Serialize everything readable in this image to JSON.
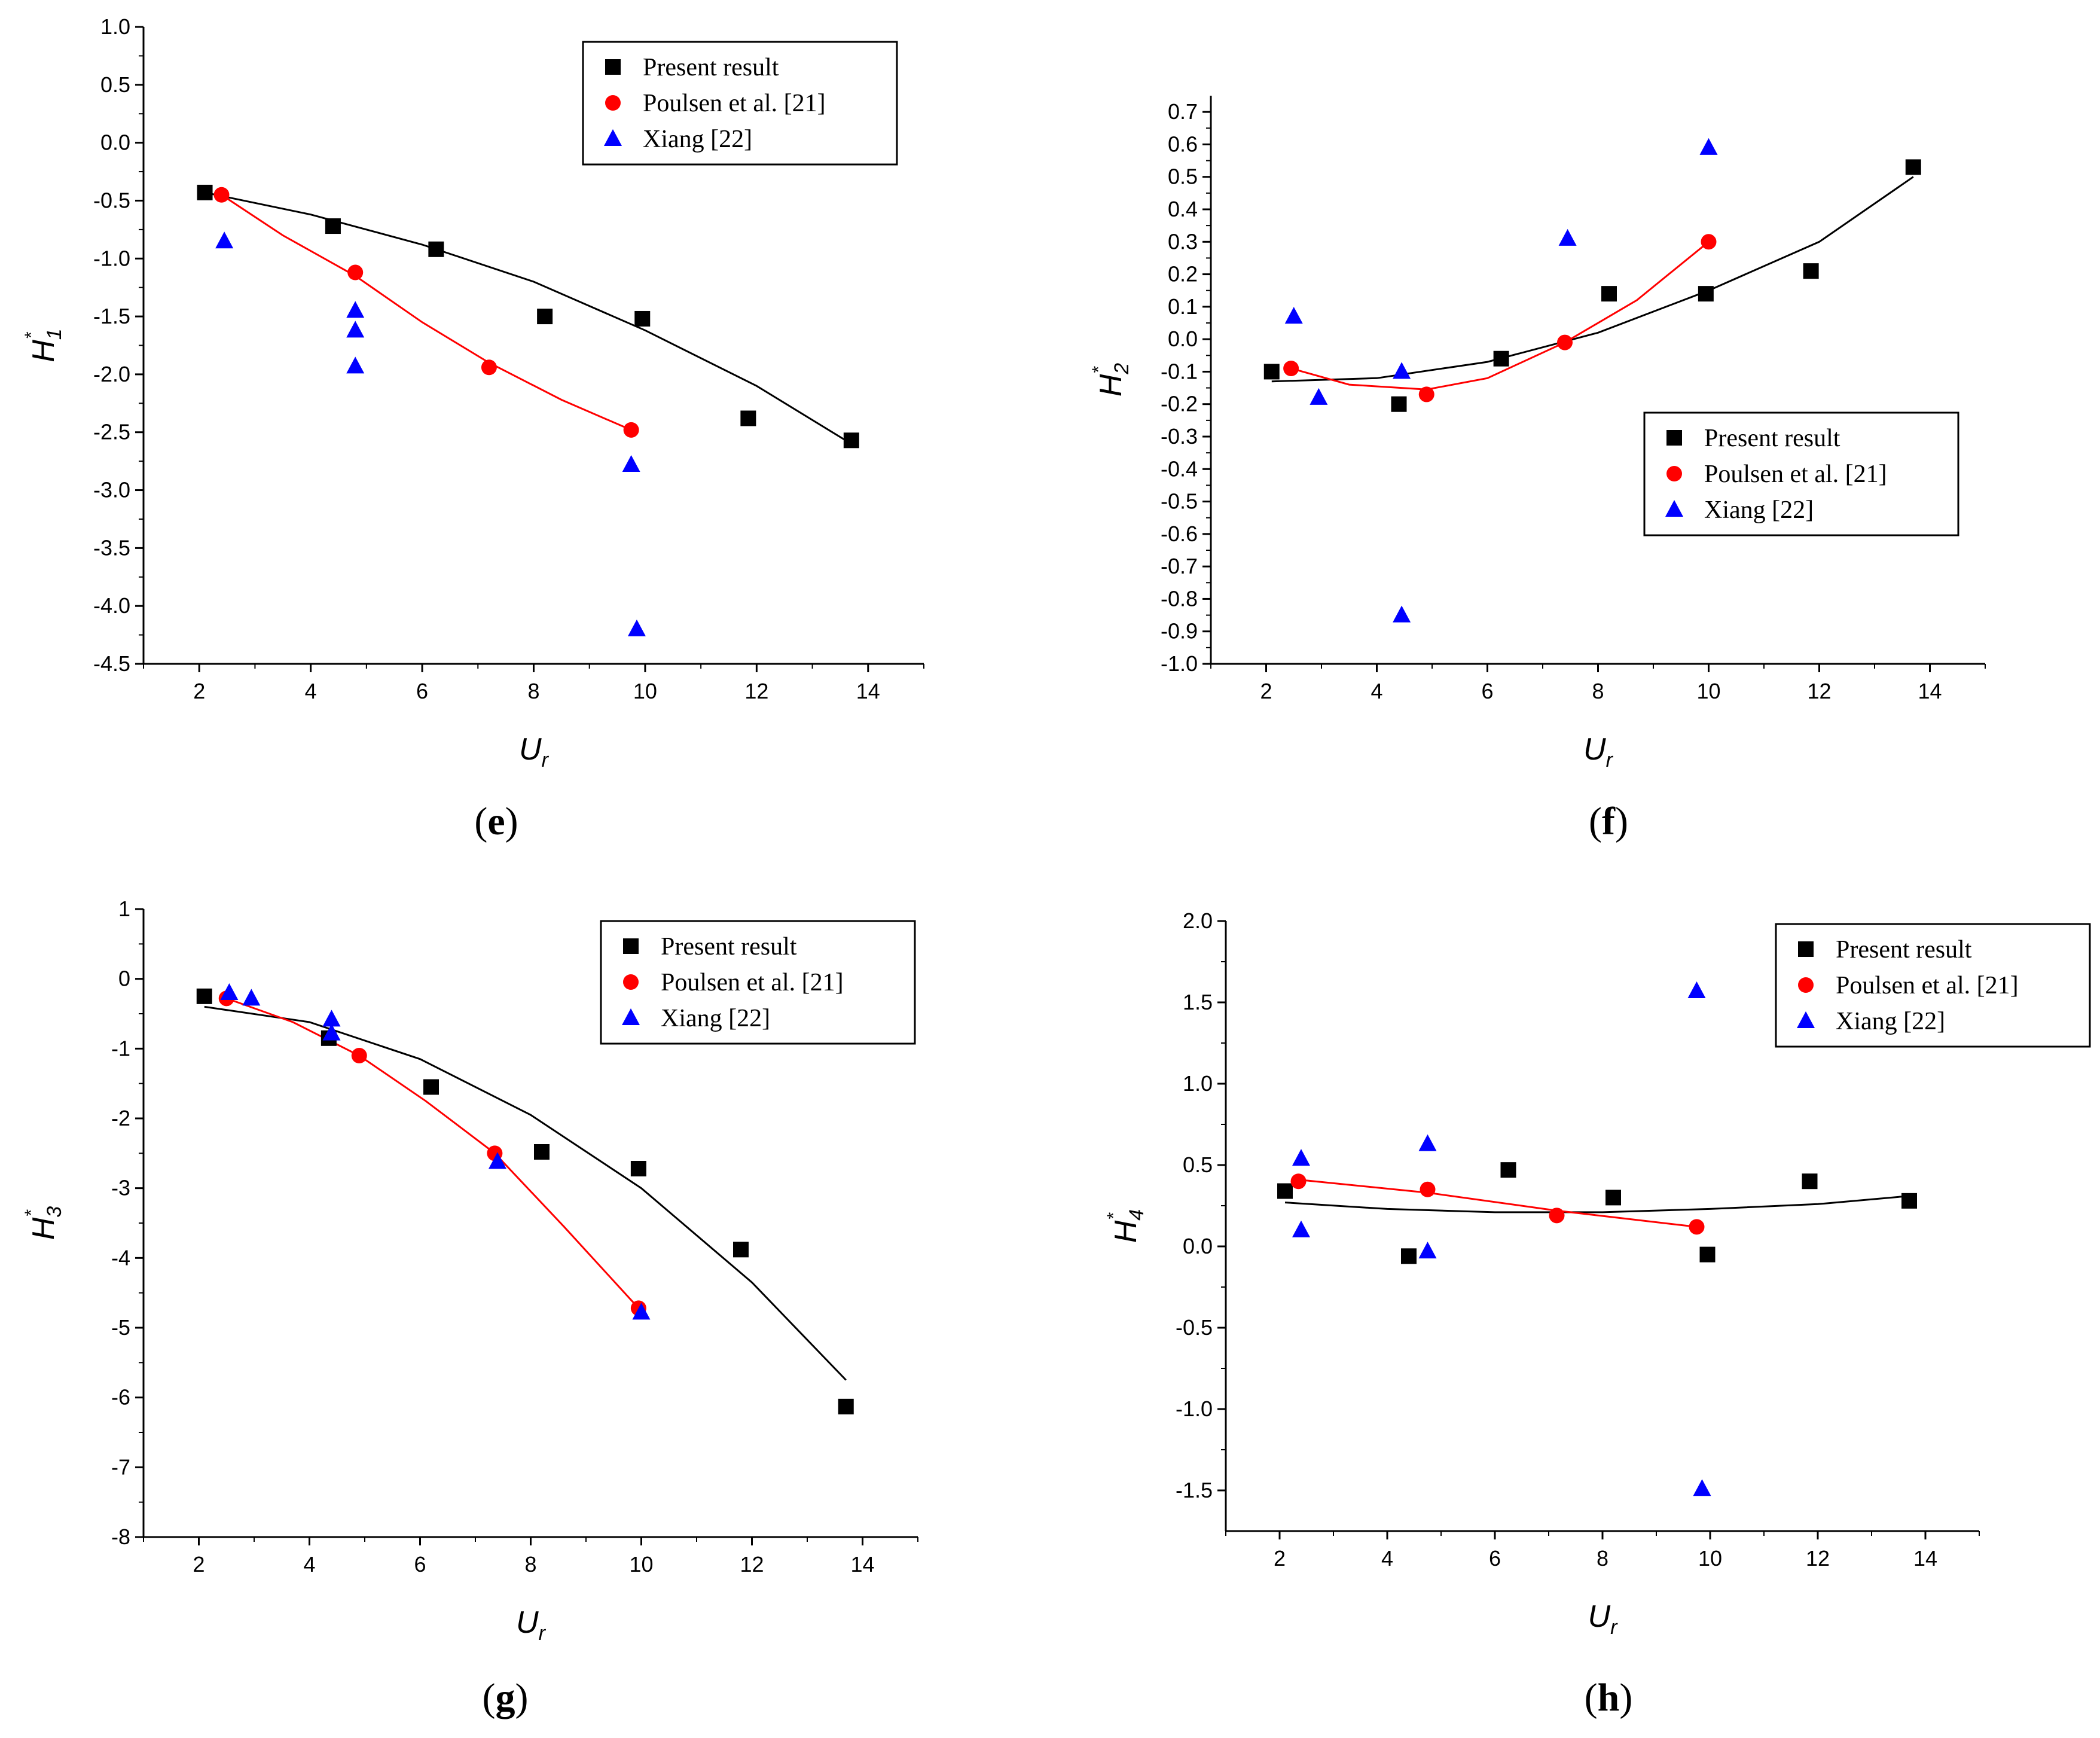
{
  "colors": {
    "present": "#000000",
    "poulsen": "#ff0000",
    "xiang": "#0000ff"
  },
  "legend": [
    "Present result",
    "Poulsen et al. [21]",
    "Xiang [22]"
  ],
  "chart_data": [
    {
      "id": "e",
      "panel_label": "e",
      "type": "scatter",
      "ylabel": "H",
      "ylabel_sub": "1",
      "ylabel_sup": "*",
      "xlabel": "U",
      "xlabel_sub": "r",
      "xlim": [
        1,
        15
      ],
      "ylim": [
        -4.5,
        1.0
      ],
      "xticks": [
        2,
        4,
        6,
        8,
        10,
        12,
        14
      ],
      "yticks": [
        1.0,
        0.5,
        0.0,
        -0.5,
        -1.0,
        -1.5,
        -2.0,
        -2.5,
        -3.0,
        -3.5,
        -4.0,
        -4.5
      ],
      "ytick_labels": [
        "1.0",
        "0.5",
        "0.0",
        "-0.5",
        "-1.0",
        "-1.5",
        "-2.0",
        "-2.5",
        "-3.0",
        "-3.5",
        "-4.0",
        "-4.5"
      ],
      "legend_position": "top-right",
      "series": [
        {
          "name": "Present result",
          "marker": "square",
          "x": [
            2.1,
            4.4,
            6.25,
            8.2,
            9.95,
            11.85,
            13.7
          ],
          "y": [
            -0.43,
            -0.72,
            -0.92,
            -1.5,
            -1.52,
            -2.38,
            -2.57
          ],
          "fit": [
            [
              2.1,
              -0.43
            ],
            [
              4,
              -0.62
            ],
            [
              6,
              -0.88
            ],
            [
              8,
              -1.2
            ],
            [
              10,
              -1.62
            ],
            [
              12,
              -2.1
            ],
            [
              13.7,
              -2.6
            ]
          ]
        },
        {
          "name": "Poulsen et al. [21]",
          "marker": "circle",
          "x": [
            2.4,
            4.8,
            7.2,
            9.75
          ],
          "y": [
            -0.45,
            -1.12,
            -1.94,
            -2.48
          ],
          "fit": [
            [
              2.4,
              -0.45
            ],
            [
              3.5,
              -0.8
            ],
            [
              4.8,
              -1.15
            ],
            [
              6,
              -1.55
            ],
            [
              7.2,
              -1.9
            ],
            [
              8.5,
              -2.22
            ],
            [
              9.75,
              -2.48
            ]
          ]
        },
        {
          "name": "Xiang [22]",
          "marker": "triangle",
          "x": [
            2.45,
            4.8,
            4.8,
            4.8,
            9.75,
            9.85
          ],
          "y": [
            -0.85,
            -1.45,
            -1.62,
            -1.93,
            -2.78,
            -4.2
          ],
          "fit": []
        }
      ]
    },
    {
      "id": "f",
      "panel_label": "f",
      "type": "scatter",
      "ylabel": "H",
      "ylabel_sub": "2",
      "ylabel_sup": "*",
      "xlabel": "U",
      "xlabel_sub": "r",
      "xlim": [
        1,
        15
      ],
      "ylim": [
        -1.0,
        0.75
      ],
      "xticks": [
        2,
        4,
        6,
        8,
        10,
        12,
        14
      ],
      "yticks": [
        0.7,
        0.6,
        0.5,
        0.4,
        0.3,
        0.2,
        0.1,
        0.0,
        -0.1,
        -0.2,
        -0.3,
        -0.4,
        -0.5,
        -0.6,
        -0.7,
        -0.8,
        -0.9,
        -1.0
      ],
      "ytick_labels": [
        "0.7",
        "0.6",
        "0.5",
        "0.4",
        "0.3",
        "0.2",
        "0.1",
        "0.0",
        "-0.1",
        "-0.2",
        "-0.3",
        "-0.4",
        "-0.5",
        "-0.6",
        "-0.7",
        "-0.8",
        "-0.9",
        "-1.0"
      ],
      "legend_position": "center-right",
      "series": [
        {
          "name": "Present result",
          "marker": "square",
          "x": [
            2.1,
            4.4,
            6.25,
            8.2,
            9.95,
            11.85,
            13.7
          ],
          "y": [
            -0.1,
            -0.2,
            -0.06,
            0.14,
            0.14,
            0.21,
            0.53
          ],
          "fit": [
            [
              2.1,
              -0.13
            ],
            [
              4,
              -0.12
            ],
            [
              6,
              -0.07
            ],
            [
              8,
              0.02
            ],
            [
              10,
              0.15
            ],
            [
              12,
              0.3
            ],
            [
              13.7,
              0.5
            ]
          ]
        },
        {
          "name": "Poulsen et al. [21]",
          "marker": "circle",
          "x": [
            2.45,
            4.9,
            7.4,
            10.0
          ],
          "y": [
            -0.09,
            -0.17,
            -0.01,
            0.3
          ],
          "fit": [
            [
              2.45,
              -0.09
            ],
            [
              3.5,
              -0.14
            ],
            [
              4.9,
              -0.155
            ],
            [
              6,
              -0.12
            ],
            [
              7.4,
              -0.01
            ],
            [
              8.7,
              0.12
            ],
            [
              10.0,
              0.3
            ]
          ]
        },
        {
          "name": "Xiang [22]",
          "marker": "triangle",
          "x": [
            2.5,
            2.95,
            4.45,
            4.45,
            7.45,
            10.0
          ],
          "y": [
            0.07,
            -0.18,
            -0.1,
            -0.85,
            0.31,
            0.59
          ],
          "fit": []
        }
      ]
    },
    {
      "id": "g",
      "panel_label": "g",
      "type": "scatter",
      "ylabel": "H",
      "ylabel_sub": "3",
      "ylabel_sup": "*",
      "xlabel": "U",
      "xlabel_sub": "r",
      "xlim": [
        1,
        15
      ],
      "ylim": [
        -8,
        1
      ],
      "xticks": [
        2,
        4,
        6,
        8,
        10,
        12,
        14
      ],
      "yticks": [
        1,
        0,
        -1,
        -2,
        -3,
        -4,
        -5,
        -6,
        -7,
        -8
      ],
      "ytick_labels": [
        "1",
        "0",
        "-1",
        "-2",
        "-3",
        "-4",
        "-5",
        "-6",
        "-7",
        "-8"
      ],
      "legend_position": "top-right",
      "series": [
        {
          "name": "Present result",
          "marker": "square",
          "x": [
            2.1,
            4.35,
            6.2,
            8.2,
            9.95,
            11.8,
            13.7
          ],
          "y": [
            -0.25,
            -0.85,
            -1.55,
            -2.48,
            -2.72,
            -3.88,
            -6.13
          ],
          "fit": [
            [
              2.1,
              -0.4
            ],
            [
              4,
              -0.62
            ],
            [
              6,
              -1.15
            ],
            [
              8,
              -1.95
            ],
            [
              10,
              -3.0
            ],
            [
              12,
              -4.35
            ],
            [
              13.7,
              -5.75
            ]
          ]
        },
        {
          "name": "Poulsen et al. [21]",
          "marker": "circle",
          "x": [
            2.5,
            4.9,
            7.35,
            9.95
          ],
          "y": [
            -0.28,
            -1.1,
            -2.5,
            -4.72
          ],
          "fit": [
            [
              2.5,
              -0.28
            ],
            [
              3.7,
              -0.62
            ],
            [
              4.9,
              -1.1
            ],
            [
              6.1,
              -1.75
            ],
            [
              7.35,
              -2.5
            ],
            [
              8.6,
              -3.55
            ],
            [
              9.95,
              -4.72
            ]
          ]
        },
        {
          "name": "Xiang [22]",
          "marker": "triangle",
          "x": [
            2.55,
            2.95,
            4.4,
            4.4,
            7.4,
            10.0
          ],
          "y": [
            -0.2,
            -0.28,
            -0.58,
            -0.78,
            -2.62,
            -4.78
          ],
          "fit": []
        }
      ]
    },
    {
      "id": "h",
      "panel_label": "h",
      "type": "scatter",
      "ylabel": "H",
      "ylabel_sub": "4",
      "ylabel_sup": "*",
      "xlabel": "U",
      "xlabel_sub": "r",
      "xlim": [
        1,
        15
      ],
      "ylim": [
        -1.75,
        2.0
      ],
      "xticks": [
        2,
        4,
        6,
        8,
        10,
        12,
        14
      ],
      "yticks": [
        2.0,
        1.5,
        1.0,
        0.5,
        0.0,
        -0.5,
        -1.0,
        -1.5
      ],
      "ytick_labels": [
        "2.0",
        "1.5",
        "1.0",
        "0.5",
        "0.0",
        "-0.5",
        "-1.0",
        "-1.5"
      ],
      "legend_position": "top-right",
      "series": [
        {
          "name": "Present result",
          "marker": "square",
          "x": [
            2.1,
            4.4,
            6.25,
            8.2,
            9.95,
            11.85,
            13.7
          ],
          "y": [
            0.34,
            -0.06,
            0.47,
            0.3,
            -0.05,
            0.4,
            0.28
          ],
          "fit": [
            [
              2.1,
              0.27
            ],
            [
              4,
              0.23
            ],
            [
              6,
              0.21
            ],
            [
              8,
              0.21
            ],
            [
              10,
              0.23
            ],
            [
              12,
              0.26
            ],
            [
              13.7,
              0.31
            ]
          ]
        },
        {
          "name": "Poulsen et al. [21]",
          "marker": "circle",
          "x": [
            2.35,
            4.75,
            7.15,
            9.75
          ],
          "y": [
            0.4,
            0.35,
            0.19,
            0.12
          ],
          "fit": [
            [
              2.35,
              0.41
            ],
            [
              4.75,
              0.33
            ],
            [
              7.15,
              0.22
            ],
            [
              9.75,
              0.12
            ]
          ]
        },
        {
          "name": "Xiang [22]",
          "marker": "triangle",
          "x": [
            2.4,
            2.4,
            4.75,
            4.75,
            9.75,
            9.85
          ],
          "y": [
            0.54,
            0.1,
            0.63,
            -0.03,
            1.57,
            -1.49
          ],
          "fit": []
        }
      ]
    }
  ]
}
